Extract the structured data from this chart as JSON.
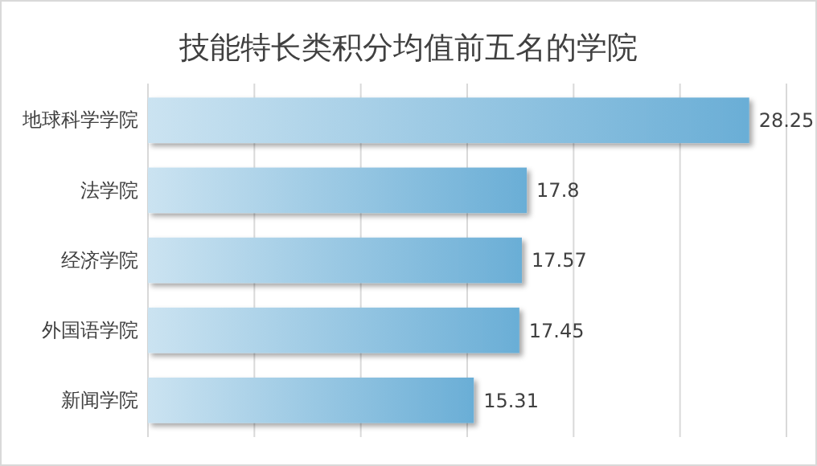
{
  "chart_data": {
    "type": "bar",
    "orientation": "horizontal",
    "title": "技能特长类积分均值前五名的学院",
    "categories": [
      "地球科学学院",
      "法学院",
      "经济学院",
      "外国语学院",
      "新闻学院"
    ],
    "values": [
      28.25,
      17.8,
      17.57,
      17.45,
      15.31
    ],
    "color": "#6aaed6",
    "data_labels": true,
    "xlim": [
      0,
      30
    ],
    "xticks": [
      {
        "value": 0,
        "label": null
      },
      {
        "value": 5,
        "label": null
      },
      {
        "value": 10,
        "label": null
      },
      {
        "value": 15,
        "label": null
      },
      {
        "value": 20,
        "label": null
      },
      {
        "value": 25,
        "label": null
      },
      {
        "value": 30,
        "label": null
      }
    ],
    "grid": "x",
    "tick_labels": "y"
  }
}
